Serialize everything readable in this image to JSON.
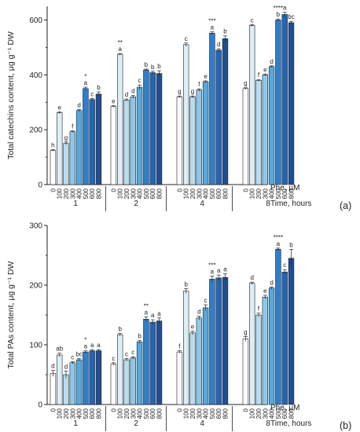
{
  "figure": {
    "x_caption_unit": "Phe, μM",
    "x_caption_time": "Time, hours"
  },
  "colors": [
    "#ffffff",
    "#ddeef7",
    "#b9dcef",
    "#8ec8ea",
    "#56a9df",
    "#2c7fd0",
    "#2466b5",
    "#1f4f92"
  ],
  "chart_data": [
    {
      "type": "bar",
      "panel_label": "(a)",
      "ylabel": "Total catechins content, μg g⁻¹ DW",
      "ylim": [
        0,
        650
      ],
      "yticks": [
        0,
        200,
        400,
        600
      ],
      "groups": [
        "1",
        "2",
        "4",
        "8"
      ],
      "categories": [
        "0",
        "100",
        "200",
        "300",
        "400",
        "500",
        "600",
        "800"
      ],
      "series": [
        {
          "group": "1",
          "values": [
            125,
            262,
            150,
            193,
            270,
            350,
            310,
            330
          ],
          "errors": [
            3,
            3,
            5,
            3,
            4,
            5,
            4,
            8
          ],
          "letters": [
            "h",
            "e",
            "g",
            "f",
            "d",
            "a",
            "c",
            "b"
          ],
          "stars": [
            "",
            "",
            "",
            "",
            "",
            "*",
            "",
            ""
          ]
        },
        {
          "group": "2",
          "values": [
            285,
            475,
            308,
            320,
            355,
            418,
            408,
            405
          ],
          "errors": [
            3,
            3,
            4,
            5,
            8,
            3,
            5,
            10
          ],
          "letters": [
            "e",
            "a",
            "d",
            "d",
            "c",
            "b",
            "b",
            "b"
          ],
          "stars": [
            "",
            "**",
            "",
            "",
            "",
            "",
            "",
            ""
          ]
        },
        {
          "group": "4",
          "values": [
            320,
            510,
            320,
            345,
            375,
            552,
            490,
            532
          ],
          "errors": [
            3,
            6,
            3,
            4,
            3,
            5,
            5,
            10
          ],
          "letters": [
            "g",
            "c",
            "g",
            "f",
            "e",
            "a",
            "d",
            "b"
          ],
          "stars": [
            "",
            "",
            "",
            "",
            "",
            "***",
            "",
            ""
          ]
        },
        {
          "group": "8",
          "values": [
            350,
            580,
            380,
            400,
            430,
            600,
            620,
            590
          ],
          "errors": [
            3,
            3,
            3,
            3,
            3,
            4,
            8,
            5
          ],
          "letters": [
            "g",
            "c",
            "f",
            "e",
            "d",
            "b",
            "a",
            "bc"
          ],
          "stars": [
            "",
            "",
            "",
            "",
            "",
            "****",
            "",
            ""
          ]
        }
      ]
    },
    {
      "type": "bar",
      "panel_label": "(b)",
      "ylabel": "Total PAs content, μg g⁻¹ DW",
      "ylim": [
        0,
        300
      ],
      "yticks": [
        0,
        100,
        200,
        300
      ],
      "groups": [
        "1",
        "2",
        "4",
        "8"
      ],
      "categories": [
        "0",
        "100",
        "200",
        "300",
        "400",
        "500",
        "600",
        "800"
      ],
      "series": [
        {
          "group": "1",
          "values": [
            52,
            83,
            50,
            70,
            75,
            88,
            90,
            90
          ],
          "errors": [
            5,
            3,
            6,
            2,
            2,
            2,
            2,
            2
          ],
          "letters": [
            "d",
            "ab",
            "d",
            "c",
            "bc",
            "a",
            "a",
            "a"
          ],
          "stars": [
            "",
            "",
            "",
            "",
            "",
            "*",
            "",
            ""
          ]
        },
        {
          "group": "2",
          "values": [
            68,
            117,
            75,
            78,
            105,
            143,
            138,
            140
          ],
          "errors": [
            2,
            2,
            2,
            2,
            2,
            4,
            4,
            5
          ],
          "letters": [
            "c",
            "b",
            "c",
            "c",
            "b",
            "a",
            "a",
            "a"
          ],
          "stars": [
            "",
            "",
            "",
            "",
            "",
            "**",
            "",
            ""
          ]
        },
        {
          "group": "4",
          "values": [
            88,
            190,
            120,
            145,
            162,
            210,
            212,
            213
          ],
          "errors": [
            2,
            4,
            3,
            3,
            5,
            5,
            5,
            6
          ],
          "letters": [
            "f",
            "b",
            "e",
            "d",
            "c",
            "a",
            "a",
            "a"
          ],
          "stars": [
            "",
            "",
            "",
            "",
            "",
            "***",
            "",
            ""
          ]
        },
        {
          "group": "8",
          "values": [
            110,
            203,
            150,
            180,
            195,
            260,
            222,
            245
          ],
          "errors": [
            4,
            2,
            3,
            3,
            2,
            2,
            4,
            15
          ],
          "letters": [
            "g",
            "d",
            "f",
            "e",
            "d",
            "a",
            "c",
            "b"
          ],
          "stars": [
            "",
            "",
            "",
            "",
            "",
            "****",
            "",
            ""
          ]
        }
      ]
    }
  ]
}
